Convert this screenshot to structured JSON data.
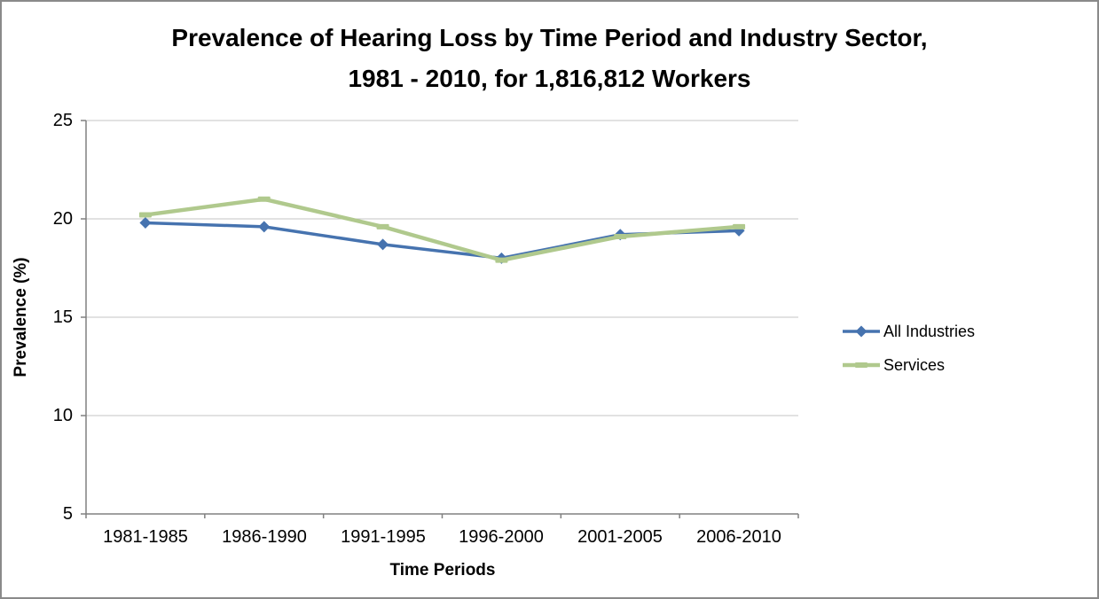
{
  "colors": {
    "background": "#FFFFFF",
    "frame_border": "#8A8A8A",
    "gridline": "#C4C4C4",
    "axis": "#808080",
    "text": "#000000"
  },
  "chart_data": {
    "type": "line",
    "title": "Prevalence of Hearing Loss by Time Period and Industry Sector, 1981 - 2010, for 1,816,812 Workers",
    "title_line1": "Prevalence of Hearing Loss by Time Period and Industry Sector,",
    "title_line2": "1981 - 2010, for 1,816,812 Workers",
    "xlabel": "Time Periods",
    "ylabel": "Prevalence (%)",
    "ylim": [
      5,
      25
    ],
    "y_ticks": [
      25,
      20,
      15,
      10,
      5
    ],
    "categories": [
      "1981-1985",
      "1986-1990",
      "1991-1995",
      "1996-2000",
      "2001-2005",
      "2006-2010"
    ],
    "series": [
      {
        "name": "All Industries",
        "color": "#4673AF",
        "marker": "diamond",
        "values": [
          19.8,
          19.6,
          18.7,
          18.0,
          19.2,
          19.4
        ]
      },
      {
        "name": "Services",
        "color": "#B0C98D",
        "marker": "dash",
        "values": [
          20.2,
          21.0,
          19.6,
          17.9,
          19.1,
          19.6
        ]
      }
    ],
    "grid": true,
    "legend_position": "right"
  }
}
